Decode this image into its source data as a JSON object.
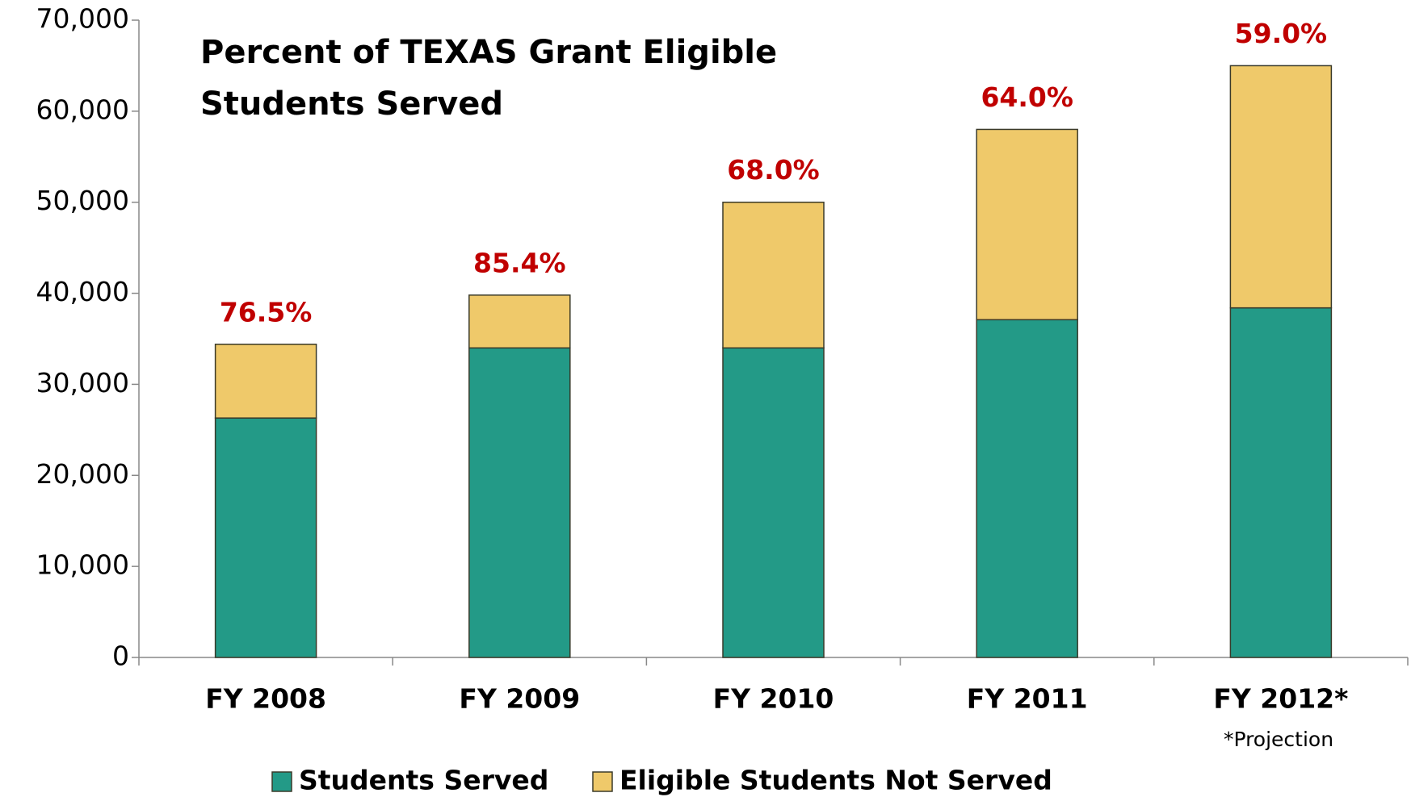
{
  "chart_data": {
    "type": "stacked_bar",
    "title": [
      "Percent of TEXAS Grant Eligible",
      "Students Served"
    ],
    "categories": [
      "FY 2008",
      "FY 2009",
      "FY 2010",
      "FY 2011",
      "FY 2012*"
    ],
    "series": [
      {
        "name": "Students Served",
        "color": "#239a87",
        "values": [
          26300,
          34000,
          34000,
          37100,
          38400
        ]
      },
      {
        "name": "Eligible Students Not Served",
        "color": "#efc96a",
        "values": [
          8100,
          5800,
          16000,
          20900,
          26600
        ]
      }
    ],
    "percent_labels": [
      "76.5%",
      "85.4%",
      "68.0%",
      "64.0%",
      "59.0%"
    ],
    "footnote": "*Projection",
    "ylim": [
      0,
      70000
    ],
    "yticks": [
      0,
      {
        "value": 10000,
        "label": "10,000"
      },
      {
        "value": 20000,
        "label": "20,000"
      },
      {
        "value": 30000,
        "label": "30,000"
      },
      {
        "value": 40000,
        "label": "40,000"
      },
      {
        "value": 50000,
        "label": "50,000"
      },
      {
        "value": 60000,
        "label": "60,000"
      },
      {
        "value": 70000,
        "label": "70,000"
      }
    ]
  }
}
